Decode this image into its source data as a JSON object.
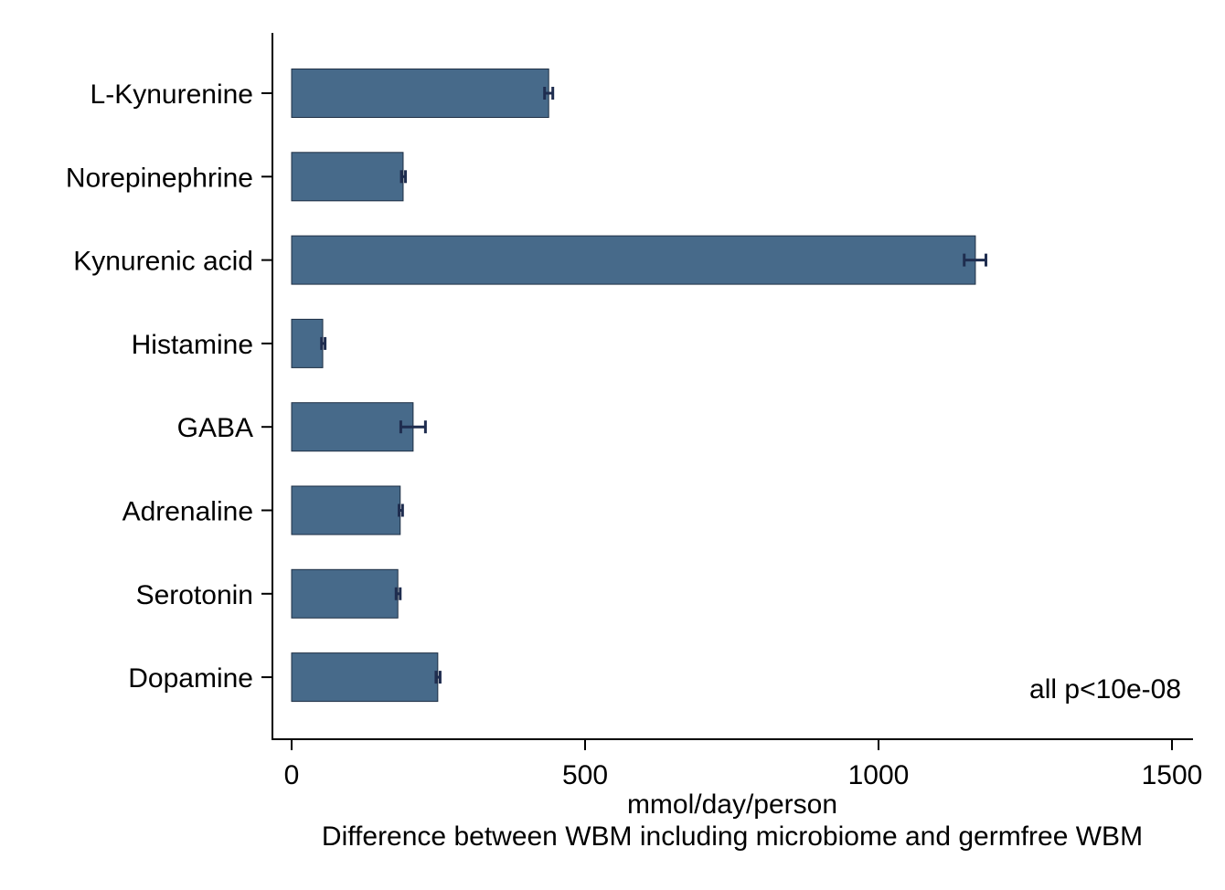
{
  "chart_data": {
    "type": "bar",
    "orientation": "horizontal",
    "categories": [
      "L-Kynurenine",
      "Norepinephrine",
      "Kynurenic acid",
      "Histamine",
      "GABA",
      "Adrenaline",
      "Serotonin",
      "Dopamine"
    ],
    "values": [
      438,
      190,
      1165,
      53,
      207,
      185,
      181,
      249
    ],
    "error_low": [
      431,
      187,
      1146,
      51,
      186,
      183,
      178,
      246
    ],
    "error_high": [
      445,
      194,
      1183,
      57,
      228,
      189,
      185,
      253
    ],
    "xlabel": "mmol/day/person",
    "xlabel2": "Difference between WBM including microbiome and germfree WBM",
    "ylabel": "",
    "xlim": [
      0,
      1500
    ],
    "xticks": [
      0,
      500,
      1000,
      1500
    ],
    "annotation": "all p<10e-08",
    "bar_color": "#476a8a",
    "error_color": "#1f2d4f",
    "grid": false
  }
}
